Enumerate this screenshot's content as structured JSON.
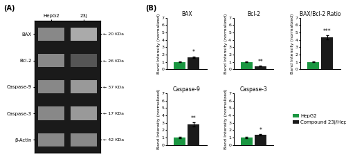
{
  "chart_data": [
    {
      "type": "blot",
      "panel_label": "(A)",
      "categories": [
        "HepG2",
        "23j"
      ],
      "rows": [
        "BAX",
        "Bcl-2",
        "Caspase-9",
        "Caspase-3",
        "β-Actin"
      ],
      "annotations": [
        "← 20 KDa",
        "← 26 KDa",
        "← 37 KDa",
        "← 17 KDa",
        "← 42 KDa"
      ],
      "colors": [
        [
          "#888888",
          "#aaaaaa"
        ],
        [
          "#888888",
          "#555555"
        ],
        [
          "#888888",
          "#999999"
        ],
        [
          "#888888",
          "#999999"
        ],
        [
          "#888888",
          "#888888"
        ]
      ]
    },
    {
      "type": "bar",
      "panel_label": "(B)",
      "title": "BAX",
      "y_label": "Band Intensity (normalized)",
      "categories": [
        null
      ],
      "tick_labels": "y",
      "ylim": [
        0,
        7
      ],
      "yticks": [
        0,
        1,
        2,
        3,
        4,
        5,
        6,
        7
      ],
      "series": [
        {
          "name": "HepG2",
          "color": "#1a9641",
          "values": [
            1.0
          ],
          "errors": [
            0.07
          ]
        },
        {
          "name": "Compound 23j/HepG2",
          "color": "#1a1a1a",
          "values": [
            1.62
          ],
          "errors": [
            0.13
          ]
        }
      ],
      "annotations": [
        "*"
      ]
    },
    {
      "type": "bar",
      "title": "Bcl-2",
      "y_label": "Band Intensity (normalized)",
      "categories": [
        null
      ],
      "tick_labels": "y",
      "ylim": [
        0,
        7
      ],
      "yticks": [
        0,
        1,
        2,
        3,
        4,
        5,
        6,
        7
      ],
      "series": [
        {
          "name": "HepG2",
          "color": "#1a9641",
          "values": [
            1.0
          ],
          "errors": [
            0.07
          ]
        },
        {
          "name": "Compound 23j/HepG2",
          "color": "#1a1a1a",
          "values": [
            0.42
          ],
          "errors": [
            0.05
          ]
        }
      ],
      "annotations": [
        "**"
      ]
    },
    {
      "type": "bar",
      "title": "BAX/Bcl-2 Ratio",
      "y_label": "Band Intensity (normalized)",
      "categories": [
        null
      ],
      "tick_labels": "y",
      "ylim": [
        0,
        7
      ],
      "yticks": [
        0,
        1,
        2,
        3,
        4,
        5,
        6,
        7
      ],
      "series": [
        {
          "name": "HepG2",
          "color": "#1a9641",
          "values": [
            1.0
          ],
          "errors": [
            0.08
          ]
        },
        {
          "name": "Compound 23j/HepG2",
          "color": "#1a1a1a",
          "values": [
            4.3
          ],
          "errors": [
            0.28
          ]
        }
      ],
      "annotations": [
        "***"
      ]
    },
    {
      "type": "bar",
      "title": "Caspase-9",
      "y_label": "Band Intensity (normalized)",
      "categories": [
        null
      ],
      "tick_labels": "y",
      "ylim": [
        0,
        7
      ],
      "yticks": [
        0,
        1,
        2,
        3,
        4,
        5,
        6,
        7
      ],
      "series": [
        {
          "name": "HepG2",
          "color": "#1a9641",
          "values": [
            1.0
          ],
          "errors": [
            0.07
          ]
        },
        {
          "name": "Compound 23j/HepG2",
          "color": "#1a1a1a",
          "values": [
            2.8
          ],
          "errors": [
            0.28
          ]
        }
      ],
      "annotations": [
        "**"
      ]
    },
    {
      "type": "bar",
      "title": "Caspase-3",
      "y_label": "Band Intensity (normalized)",
      "categories": [
        null
      ],
      "tick_labels": "y",
      "ylim": [
        0,
        7
      ],
      "yticks": [
        0,
        1,
        2,
        3,
        4,
        5,
        6,
        7
      ],
      "series": [
        {
          "name": "HepG2",
          "color": "#1a9641",
          "values": [
            1.0
          ],
          "errors": [
            0.07
          ]
        },
        {
          "name": "Compound 23j/HepG2",
          "color": "#1a1a1a",
          "values": [
            1.38
          ],
          "errors": [
            0.1
          ]
        }
      ],
      "annotations": [
        "*"
      ],
      "legend": "center left"
    }
  ]
}
